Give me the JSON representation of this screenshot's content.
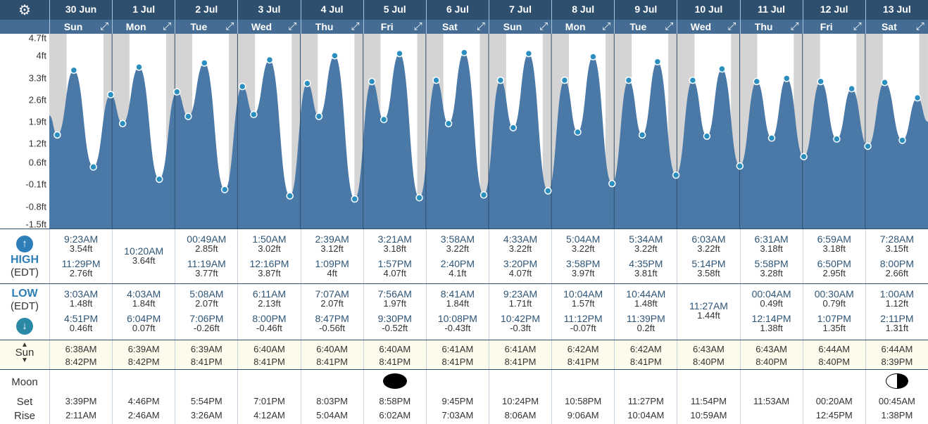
{
  "header": {
    "settings_icon": "gear-icon",
    "expand_icon": "expand-arrows-icon"
  },
  "y_axis": {
    "ticks": [
      "4.7ft",
      "4ft",
      "3.3ft",
      "2.6ft",
      "1.9ft",
      "1.2ft",
      "0.6ft",
      "-0.1ft",
      "-0.8ft",
      "-1.5ft"
    ],
    "min": -1.5,
    "max": 4.7
  },
  "colors": {
    "header_bg": "#2f4f6e",
    "tide_fill": "#4a79a8",
    "night": "#d4d4d4",
    "accent": "#2e7fb8"
  },
  "labels": {
    "high": "HIGH",
    "high_tz": "(EDT)",
    "low": "LOW",
    "low_tz": "(EDT)",
    "sun": "Sun",
    "moon": "Moon",
    "set": "Set",
    "rise": "Rise",
    "up_arrow": "↑",
    "down_arrow": "↓"
  },
  "days": [
    {
      "date": "30 Jun",
      "weekday": "Sun",
      "high": [
        {
          "time": "9:23AM",
          "h": "3.54ft"
        },
        {
          "time": "11:29PM",
          "h": "2.76ft"
        }
      ],
      "low": [
        {
          "time": "3:03AM",
          "h": "1.48ft"
        },
        {
          "time": "4:51PM",
          "h": "0.46ft"
        }
      ],
      "sun": [
        "6:38AM",
        "8:42PM"
      ],
      "moon_set": "3:39PM",
      "moon_rise": "2:11AM",
      "moon_phase": ""
    },
    {
      "date": "1 Jul",
      "weekday": "Mon",
      "high": [
        {
          "time": "10:20AM",
          "h": "3.64ft"
        }
      ],
      "low": [
        {
          "time": "4:03AM",
          "h": "1.84ft"
        },
        {
          "time": "6:04PM",
          "h": "0.07ft"
        }
      ],
      "sun": [
        "6:39AM",
        "8:42PM"
      ],
      "moon_set": "4:46PM",
      "moon_rise": "2:46AM",
      "moon_phase": ""
    },
    {
      "date": "2 Jul",
      "weekday": "Tue",
      "high": [
        {
          "time": "00:49AM",
          "h": "2.85ft"
        },
        {
          "time": "11:19AM",
          "h": "3.77ft"
        }
      ],
      "low": [
        {
          "time": "5:08AM",
          "h": "2.07ft"
        },
        {
          "time": "7:06PM",
          "h": "-0.26ft"
        }
      ],
      "sun": [
        "6:39AM",
        "8:41PM"
      ],
      "moon_set": "5:54PM",
      "moon_rise": "3:26AM",
      "moon_phase": ""
    },
    {
      "date": "3 Jul",
      "weekday": "Wed",
      "high": [
        {
          "time": "1:50AM",
          "h": "3.02ft"
        },
        {
          "time": "12:16PM",
          "h": "3.87ft"
        }
      ],
      "low": [
        {
          "time": "6:11AM",
          "h": "2.13ft"
        },
        {
          "time": "8:00PM",
          "h": "-0.46ft"
        }
      ],
      "sun": [
        "6:40AM",
        "8:41PM"
      ],
      "moon_set": "7:01PM",
      "moon_rise": "4:12AM",
      "moon_phase": ""
    },
    {
      "date": "4 Jul",
      "weekday": "Thu",
      "high": [
        {
          "time": "2:39AM",
          "h": "3.12ft"
        },
        {
          "time": "1:09PM",
          "h": "4ft"
        }
      ],
      "low": [
        {
          "time": "7:07AM",
          "h": "2.07ft"
        },
        {
          "time": "8:47PM",
          "h": "-0.56ft"
        }
      ],
      "sun": [
        "6:40AM",
        "8:41PM"
      ],
      "moon_set": "8:03PM",
      "moon_rise": "5:04AM",
      "moon_phase": ""
    },
    {
      "date": "5 Jul",
      "weekday": "Fri",
      "high": [
        {
          "time": "3:21AM",
          "h": "3.18ft"
        },
        {
          "time": "1:57PM",
          "h": "4.07ft"
        }
      ],
      "low": [
        {
          "time": "7:56AM",
          "h": "1.97ft"
        },
        {
          "time": "9:30PM",
          "h": "-0.52ft"
        }
      ],
      "sun": [
        "6:40AM",
        "8:41PM"
      ],
      "moon_set": "8:58PM",
      "moon_rise": "6:02AM",
      "moon_phase": "new"
    },
    {
      "date": "6 Jul",
      "weekday": "Sat",
      "high": [
        {
          "time": "3:58AM",
          "h": "3.22ft"
        },
        {
          "time": "2:40PM",
          "h": "4.1ft"
        }
      ],
      "low": [
        {
          "time": "8:41AM",
          "h": "1.84ft"
        },
        {
          "time": "10:08PM",
          "h": "-0.43ft"
        }
      ],
      "sun": [
        "6:41AM",
        "8:41PM"
      ],
      "moon_set": "9:45PM",
      "moon_rise": "7:03AM",
      "moon_phase": ""
    },
    {
      "date": "7 Jul",
      "weekday": "Sun",
      "high": [
        {
          "time": "4:33AM",
          "h": "3.22ft"
        },
        {
          "time": "3:20PM",
          "h": "4.07ft"
        }
      ],
      "low": [
        {
          "time": "9:23AM",
          "h": "1.71ft"
        },
        {
          "time": "10:42PM",
          "h": "-0.3ft"
        }
      ],
      "sun": [
        "6:41AM",
        "8:41PM"
      ],
      "moon_set": "10:24PM",
      "moon_rise": "8:06AM",
      "moon_phase": ""
    },
    {
      "date": "8 Jul",
      "weekday": "Mon",
      "high": [
        {
          "time": "5:04AM",
          "h": "3.22ft"
        },
        {
          "time": "3:58PM",
          "h": "3.97ft"
        }
      ],
      "low": [
        {
          "time": "10:04AM",
          "h": "1.57ft"
        },
        {
          "time": "11:12PM",
          "h": "-0.07ft"
        }
      ],
      "sun": [
        "6:42AM",
        "8:41PM"
      ],
      "moon_set": "10:58PM",
      "moon_rise": "9:06AM",
      "moon_phase": ""
    },
    {
      "date": "9 Jul",
      "weekday": "Tue",
      "high": [
        {
          "time": "5:34AM",
          "h": "3.22ft"
        },
        {
          "time": "4:35PM",
          "h": "3.81ft"
        }
      ],
      "low": [
        {
          "time": "10:44AM",
          "h": "1.48ft"
        },
        {
          "time": "11:39PM",
          "h": "0.2ft"
        }
      ],
      "sun": [
        "6:42AM",
        "8:41PM"
      ],
      "moon_set": "11:27PM",
      "moon_rise": "10:04AM",
      "moon_phase": ""
    },
    {
      "date": "10 Jul",
      "weekday": "Wed",
      "high": [
        {
          "time": "6:03AM",
          "h": "3.22ft"
        },
        {
          "time": "5:14PM",
          "h": "3.58ft"
        }
      ],
      "low": [
        {
          "time": "11:27AM",
          "h": "1.44ft"
        }
      ],
      "sun": [
        "6:43AM",
        "8:40PM"
      ],
      "moon_set": "11:54PM",
      "moon_rise": "10:59AM",
      "moon_phase": ""
    },
    {
      "date": "11 Jul",
      "weekday": "Thu",
      "high": [
        {
          "time": "6:31AM",
          "h": "3.18ft"
        },
        {
          "time": "5:58PM",
          "h": "3.28ft"
        }
      ],
      "low": [
        {
          "time": "00:04AM",
          "h": "0.49ft"
        },
        {
          "time": "12:14PM",
          "h": "1.38ft"
        }
      ],
      "sun": [
        "6:43AM",
        "8:40PM"
      ],
      "moon_set": "",
      "moon_rise": "11:53AM",
      "moon_phase": ""
    },
    {
      "date": "12 Jul",
      "weekday": "Fri",
      "high": [
        {
          "time": "6:59AM",
          "h": "3.18ft"
        },
        {
          "time": "6:50PM",
          "h": "2.95ft"
        }
      ],
      "low": [
        {
          "time": "00:30AM",
          "h": "0.79ft"
        },
        {
          "time": "1:07PM",
          "h": "1.35ft"
        }
      ],
      "sun": [
        "6:44AM",
        "8:40PM"
      ],
      "moon_set": "00:20AM",
      "moon_rise": "12:45PM",
      "moon_phase": ""
    },
    {
      "date": "13 Jul",
      "weekday": "Sat",
      "high": [
        {
          "time": "7:28AM",
          "h": "3.15ft"
        },
        {
          "time": "8:00PM",
          "h": "2.66ft"
        }
      ],
      "low": [
        {
          "time": "1:00AM",
          "h": "1.12ft"
        },
        {
          "time": "2:11PM",
          "h": "1.31ft"
        }
      ],
      "sun": [
        "6:44AM",
        "8:39PM"
      ],
      "moon_set": "00:45AM",
      "moon_rise": "1:38PM",
      "moon_phase": "first-quarter"
    }
  ]
}
